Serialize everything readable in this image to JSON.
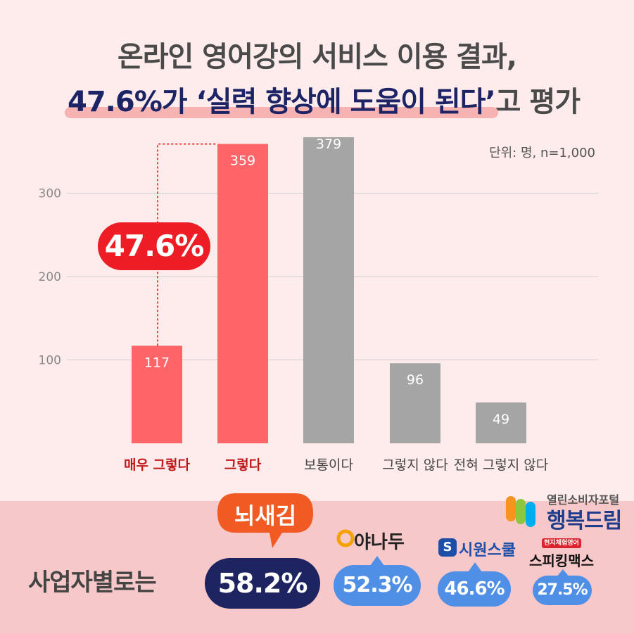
{
  "title": {
    "line1": "온라인 영어강의 서비스 이용 결과,",
    "line2_highlight": "47.6%가 ‘실력 향상에 도움이 된다’",
    "line2_rest": "고 평가"
  },
  "unit": "단위: 명, n=1,000",
  "highlight_pct": "47.6%",
  "chart_data": {
    "type": "bar",
    "categories": [
      "매우 그렇다",
      "그렇다",
      "보통이다",
      "그렇지 않다",
      "전혀 그렇지 않다"
    ],
    "values": [
      117,
      359,
      379,
      96,
      49
    ],
    "yticks": [
      100,
      200,
      300
    ],
    "ylim": [
      0,
      380
    ],
    "grid": true,
    "colors": [
      "#ff6468",
      "#ff6468",
      "#a5a5a5",
      "#a5a5a5",
      "#a5a5a5"
    ],
    "label_colors": [
      "#c01818",
      "#c01818",
      "#444444",
      "#444444",
      "#444444"
    ]
  },
  "business": {
    "label": "사업자별로는",
    "items": [
      {
        "brand": "뇌새김",
        "pct": "58.2%",
        "color": "#1e2460"
      },
      {
        "brand": "야나두",
        "pct": "52.3%",
        "color": "#4f8fe6"
      },
      {
        "brand": "시원스쿨",
        "pct": "46.6%",
        "color": "#4f8fe6"
      },
      {
        "brand": "스피킹맥스",
        "brand_tag": "현지체험영어",
        "pct": "27.5%",
        "color": "#4f8fe6"
      }
    ]
  },
  "logo": {
    "line1": "열린소비자포털",
    "line2": "행복드림"
  }
}
